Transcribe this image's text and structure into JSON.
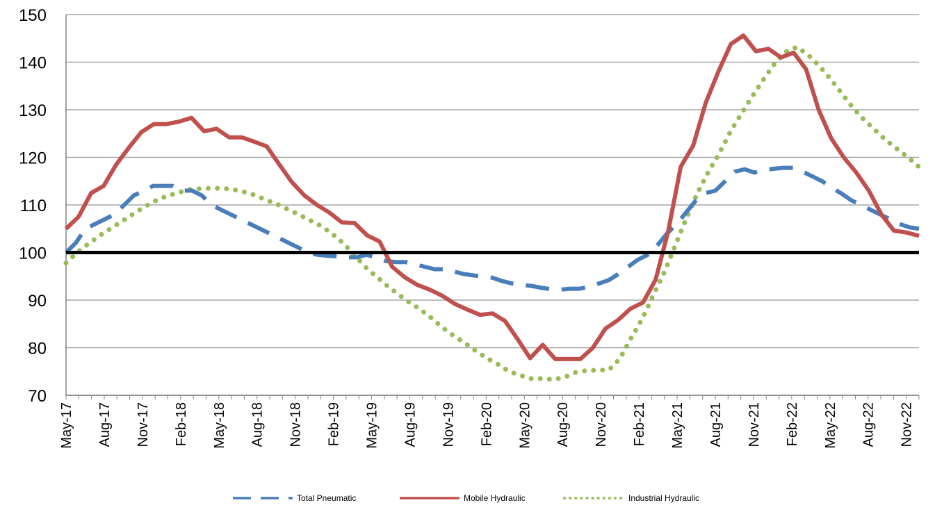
{
  "chart_data": {
    "type": "line",
    "title": "",
    "xlabel": "",
    "ylabel": "",
    "ylim": [
      70,
      150
    ],
    "y_ticks": [
      70,
      80,
      90,
      100,
      110,
      120,
      130,
      140,
      150
    ],
    "x_tick_labels": [
      "May-17",
      "Aug-17",
      "Nov-17",
      "Feb-18",
      "May-18",
      "Aug-18",
      "Nov-18",
      "Feb-19",
      "May-19",
      "Aug-19",
      "Nov-19",
      "Feb-20",
      "May-20",
      "Aug-20",
      "Nov-20",
      "Feb-21",
      "May-21",
      "Aug-21",
      "Nov-21",
      "Feb-22",
      "May-22",
      "Aug-22",
      "Nov-22"
    ],
    "x_start": "May-17",
    "x_end": "Dec-22",
    "grid": "horizontal",
    "legend_position": "bottom",
    "reference_line": {
      "value": 100,
      "color": "#000000"
    },
    "series": [
      {
        "name": "Total Pneumatic",
        "style": "dashed",
        "color": "#4A7EBB",
        "values": [
          100,
          102,
          105,
          106,
          107,
          108,
          110,
          112,
          113,
          114,
          114,
          114,
          113,
          113,
          112,
          110,
          109,
          108,
          107,
          106,
          105,
          104,
          103,
          102,
          101,
          100,
          99.5,
          99.3,
          99.2,
          99,
          99,
          99.5,
          99,
          98.2,
          98,
          98,
          97.5,
          97,
          96.5,
          96.5,
          96,
          95.5,
          95.2,
          95,
          94.7,
          94,
          93.5,
          93.2,
          93,
          92.6,
          92.3,
          92.2,
          92.4,
          92.4,
          92.8,
          93.5,
          94.2,
          95.5,
          97,
          98.5,
          99.5,
          101.5,
          104,
          106,
          108.5,
          111,
          112.5,
          113,
          115,
          117,
          117.5,
          116.8,
          117.3,
          117.6,
          117.8,
          117.8,
          117,
          116,
          115,
          113.6,
          112.4,
          111,
          110,
          109,
          108,
          107,
          106,
          105.3,
          105
        ]
      },
      {
        "name": "Mobile Hydraulic",
        "style": "solid",
        "color": "#C0504D",
        "values": [
          105,
          107.5,
          112.5,
          114,
          118.5,
          122,
          125.3,
          127,
          127,
          127.5,
          128.3,
          125.5,
          126,
          124.2,
          124.2,
          123.3,
          122.3,
          118.5,
          114.8,
          112,
          110,
          108.4,
          106.3,
          106.2,
          103.6,
          102.3,
          97,
          94.8,
          93.2,
          92.2,
          90.9,
          89.2,
          88,
          86.9,
          87.2,
          85.6,
          81.8,
          77.8,
          80.6,
          77.6,
          77.6,
          77.6,
          80,
          84,
          85.8,
          88.2,
          89.5,
          94.3,
          104.4,
          118,
          122.5,
          131.5,
          138,
          143.8,
          145.6,
          142.3,
          142.8,
          141,
          142,
          138.5,
          130,
          124,
          120,
          116.8,
          113,
          108,
          104.6,
          104.2,
          103.5
        ]
      },
      {
        "name": "Industrial Hydraulic",
        "style": "dotted",
        "color": "#9BBB59",
        "values": [
          97.8,
          100,
          101.8,
          103.5,
          105,
          106.5,
          108,
          109.5,
          110.8,
          111.8,
          112.5,
          113.2,
          113.4,
          113.5,
          113.5,
          113.3,
          112.8,
          112.1,
          111.1,
          110.2,
          109.1,
          108,
          106.8,
          105.6,
          104,
          102,
          99.5,
          97,
          95,
          93,
          91.2,
          89.5,
          88,
          86.2,
          84.2,
          82.5,
          81,
          79.3,
          77.8,
          76.5,
          75,
          74.2,
          73.5,
          73.5,
          73.3,
          73.8,
          74.8,
          75.2,
          75.3,
          75.3,
          77.7,
          82,
          86,
          91,
          95.8,
          101.5,
          107.2,
          112.5,
          117,
          121,
          125.5,
          129.3,
          133,
          136.5,
          139.8,
          142.2,
          143.2,
          141.5,
          139.2,
          136.5,
          133.5,
          130.5,
          128,
          125.8,
          123.6,
          121.8,
          120,
          118
        ]
      }
    ]
  }
}
